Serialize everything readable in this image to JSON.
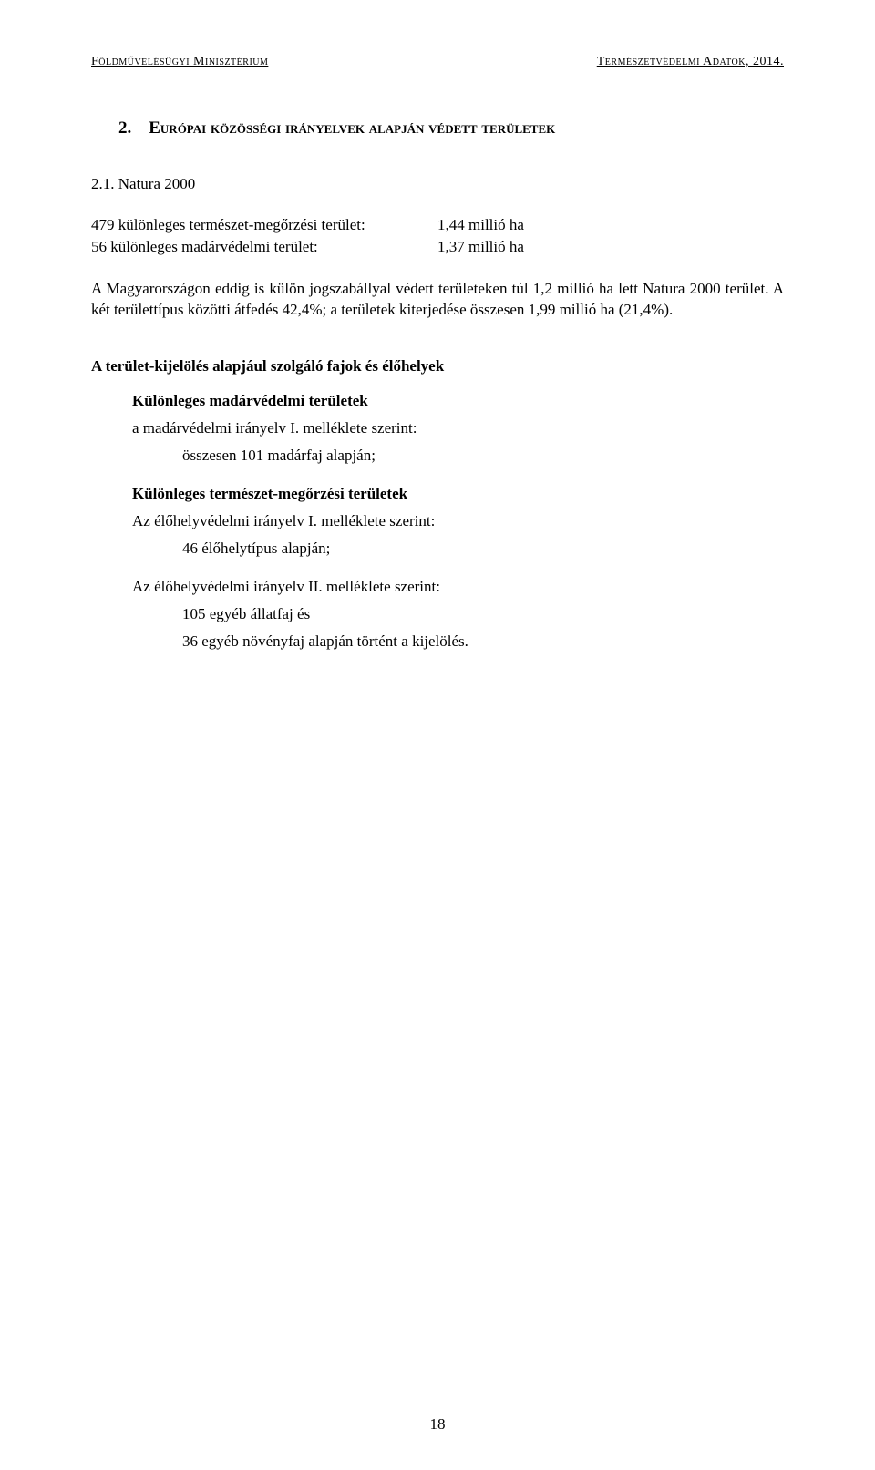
{
  "header": {
    "left": "Földművelésügyi Minisztérium",
    "right": "Természetvédelmi Adatok, 2014."
  },
  "section": {
    "number": "2.",
    "title": "Európai közösségi irányelvek alapján védett területek"
  },
  "subsection": {
    "number": "2.1.",
    "title": "Natura 2000"
  },
  "data_rows": [
    {
      "label": "479 különleges természet-megőrzési terület:",
      "value": "1,44 millió ha"
    },
    {
      "label": "56 különleges madárvédelmi terület:",
      "value": "1,37 millió ha"
    }
  ],
  "paragraph": "A Magyarországon eddig is külön jogszabállyal védett területeken túl 1,2 millió ha lett Natura 2000 terület. A két területtípus közötti átfedés 42,4%; a területek kiterjedése összesen 1,99 millió ha (21,4%).",
  "bold_heading": "A terület-kijelölés alapjául szolgáló fajok és élőhelyek",
  "blocks": [
    {
      "title": "Különleges madárvédelmi területek",
      "line1": "a madárvédelmi irányelv I. melléklete szerint:",
      "line2": "összesen 101 madárfaj alapján;"
    },
    {
      "title": "Különleges természet-megőrzési területek",
      "line1": "Az élőhelyvédelmi irányelv I. melléklete szerint:",
      "line2": "46 élőhelytípus alapján;"
    }
  ],
  "extra_block": {
    "line1": "Az élőhelyvédelmi irányelv II. melléklete szerint:",
    "line2": "105 egyéb állatfaj és",
    "line3": "36 egyéb növényfaj alapján történt a kijelölés."
  },
  "page_number": "18"
}
